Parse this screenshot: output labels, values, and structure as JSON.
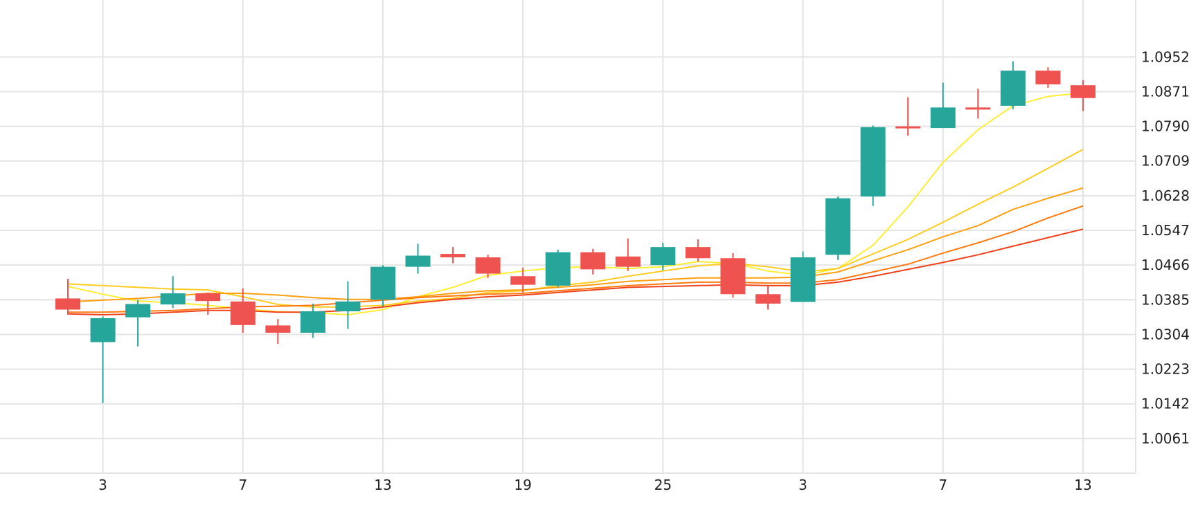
{
  "chart_data": {
    "type": "candlestick",
    "title": "",
    "xlabel": "",
    "ylabel": "",
    "grid": true,
    "ylim": [
      0.998,
      1.1085
    ],
    "y_ticks": [
      "1.0061",
      "1.0142",
      "1.0223",
      "1.0304",
      "1.0385",
      "1.0466",
      "1.0547",
      "1.0628",
      "1.0709",
      "1.0790",
      "1.0871",
      "1.0952"
    ],
    "x_ticks": [
      {
        "label": "3",
        "index": 1
      },
      {
        "label": "7",
        "index": 5
      },
      {
        "label": "13",
        "index": 9
      },
      {
        "label": "19",
        "index": 13
      },
      {
        "label": "25",
        "index": 17
      },
      {
        "label": "3",
        "index": 21
      },
      {
        "label": "7",
        "index": 25
      },
      {
        "label": "13",
        "index": 29
      }
    ],
    "colors": {
      "up": "#26a69a",
      "down": "#ef5350",
      "grid": "#e4e4e4"
    },
    "candles": [
      {
        "o": 1.0388,
        "h": 1.0434,
        "l": 1.035,
        "c": 1.0362
      },
      {
        "o": 1.0286,
        "h": 1.0346,
        "l": 1.0144,
        "c": 1.0342
      },
      {
        "o": 1.0344,
        "h": 1.0384,
        "l": 1.0276,
        "c": 1.0375
      },
      {
        "o": 1.0374,
        "h": 1.044,
        "l": 1.0366,
        "c": 1.04
      },
      {
        "o": 1.04,
        "h": 1.0402,
        "l": 1.035,
        "c": 1.0382
      },
      {
        "o": 1.0381,
        "h": 1.0412,
        "l": 1.0308,
        "c": 1.0326
      },
      {
        "o": 1.0325,
        "h": 1.034,
        "l": 1.0282,
        "c": 1.0308
      },
      {
        "o": 1.0308,
        "h": 1.0376,
        "l": 1.0296,
        "c": 1.0358
      },
      {
        "o": 1.0358,
        "h": 1.0428,
        "l": 1.0317,
        "c": 1.0381
      },
      {
        "o": 1.0385,
        "h": 1.0466,
        "l": 1.037,
        "c": 1.0462
      },
      {
        "o": 1.0462,
        "h": 1.0516,
        "l": 1.0446,
        "c": 1.0488
      },
      {
        "o": 1.0492,
        "h": 1.0508,
        "l": 1.047,
        "c": 1.0484
      },
      {
        "o": 1.0484,
        "h": 1.049,
        "l": 1.0436,
        "c": 1.0446
      },
      {
        "o": 1.044,
        "h": 1.046,
        "l": 1.0402,
        "c": 1.042
      },
      {
        "o": 1.0418,
        "h": 1.0502,
        "l": 1.0414,
        "c": 1.0496
      },
      {
        "o": 1.0496,
        "h": 1.0504,
        "l": 1.0444,
        "c": 1.0456
      },
      {
        "o": 1.0486,
        "h": 1.0528,
        "l": 1.0452,
        "c": 1.0462
      },
      {
        "o": 1.0466,
        "h": 1.0518,
        "l": 1.0454,
        "c": 1.0508
      },
      {
        "o": 1.0508,
        "h": 1.0526,
        "l": 1.0474,
        "c": 1.0482
      },
      {
        "o": 1.0482,
        "h": 1.0494,
        "l": 1.039,
        "c": 1.0398
      },
      {
        "o": 1.0398,
        "h": 1.0416,
        "l": 1.0362,
        "c": 1.0376
      },
      {
        "o": 1.038,
        "h": 1.0498,
        "l": 1.038,
        "c": 1.0484
      },
      {
        "o": 1.049,
        "h": 1.0626,
        "l": 1.0478,
        "c": 1.0622
      },
      {
        "o": 1.0626,
        "h": 1.0792,
        "l": 1.0604,
        "c": 1.0788
      },
      {
        "o": 1.079,
        "h": 1.0858,
        "l": 1.0768,
        "c": 1.0786
      },
      {
        "o": 1.0786,
        "h": 1.0892,
        "l": 1.0786,
        "c": 1.0834
      },
      {
        "o": 1.0834,
        "h": 1.0878,
        "l": 1.0808,
        "c": 1.083
      },
      {
        "o": 1.0838,
        "h": 1.0942,
        "l": 1.083,
        "c": 1.092
      },
      {
        "o": 1.092,
        "h": 1.0928,
        "l": 1.088,
        "c": 1.0888
      },
      {
        "o": 1.0886,
        "h": 1.0898,
        "l": 1.0826,
        "c": 1.0856
      }
    ],
    "moving_averages": [
      {
        "color": "#ffee33",
        "values": [
          1.0416,
          1.0398,
          1.0382,
          1.0378,
          1.0372,
          1.0364,
          1.0357,
          1.0355,
          1.035,
          1.0362,
          1.0392,
          1.0414,
          1.0442,
          1.0452,
          1.046,
          1.0462,
          1.0458,
          1.0462,
          1.0474,
          1.047,
          1.0452,
          1.0442,
          1.0458,
          1.0512,
          1.0602,
          1.0706,
          1.0782,
          1.0838,
          1.086,
          1.0868
        ]
      },
      {
        "color": "#ffcc22",
        "values": [
          1.0422,
          1.0418,
          1.0414,
          1.041,
          1.0408,
          1.0392,
          1.0374,
          1.0368,
          1.0368,
          1.0372,
          1.0382,
          1.0388,
          1.0402,
          1.0406,
          1.0418,
          1.0426,
          1.044,
          1.0452,
          1.0464,
          1.047,
          1.0462,
          1.045,
          1.0458,
          1.0492,
          1.0526,
          1.0566,
          1.0608,
          1.0648,
          1.0692,
          1.0736
        ]
      },
      {
        "color": "#ffa012",
        "values": [
          1.038,
          1.0384,
          1.0388,
          1.0394,
          1.04,
          1.04,
          1.0396,
          1.039,
          1.0386,
          1.0386,
          1.0392,
          1.04,
          1.0406,
          1.0408,
          1.0414,
          1.042,
          1.0428,
          1.0432,
          1.0436,
          1.0436,
          1.0436,
          1.0438,
          1.045,
          1.0476,
          1.0502,
          1.0532,
          1.0558,
          1.0596,
          1.0622,
          1.0646
        ]
      },
      {
        "color": "#ff7a10",
        "values": [
          1.0356,
          1.0356,
          1.0358,
          1.036,
          1.0364,
          1.0368,
          1.037,
          1.0372,
          1.0378,
          1.0384,
          1.039,
          1.0394,
          1.0398,
          1.04,
          1.0406,
          1.0412,
          1.0418,
          1.0422,
          1.0426,
          1.0426,
          1.0424,
          1.0424,
          1.0432,
          1.045,
          1.0468,
          1.0494,
          1.0518,
          1.0544,
          1.0576,
          1.0604
        ]
      },
      {
        "color": "#f0421a",
        "values": [
          1.0352,
          1.035,
          1.0352,
          1.0356,
          1.036,
          1.036,
          1.0356,
          1.0356,
          1.036,
          1.0368,
          1.0378,
          1.0386,
          1.0392,
          1.0396,
          1.0402,
          1.0408,
          1.0414,
          1.0416,
          1.0418,
          1.042,
          1.0418,
          1.0418,
          1.0426,
          1.044,
          1.0456,
          1.0472,
          1.049,
          1.051,
          1.053,
          1.055
        ]
      }
    ]
  }
}
